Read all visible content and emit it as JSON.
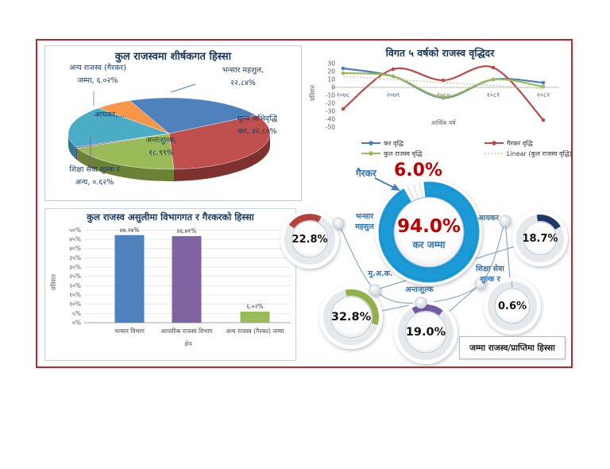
{
  "frame": {
    "border_color": "#C3242B"
  },
  "chart_data": [
    {
      "id": "revenue-share-pie",
      "type": "pie",
      "title": "कुल राजस्वमा शीर्षकगत हिस्सा",
      "slices": [
        {
          "label": "भन्सार महशुल",
          "value": 22.84,
          "color": "#4F81BD",
          "side_color": "#35577F",
          "label_lines": [
            "भन्सार महशुल,",
            "२२.८४%"
          ]
        },
        {
          "label": "मूल्य अभिवृद्धि कर",
          "value": 32.8,
          "color": "#C0504D",
          "side_color": "#7E3230",
          "label_lines": [
            "मूल्य अभिवृद्धि",
            "कर, ३२.८०%"
          ]
        },
        {
          "label": "अन्तःशुल्क",
          "value": 18.99,
          "color": "#9BBB59",
          "side_color": "#6A8136",
          "label_lines": [
            "अन्तःशुल्क,",
            "१८.९९%"
          ]
        },
        {
          "label": "शिक्षा सेवा शुल्क र अन्य",
          "value": 0.62,
          "color": "#8064A2",
          "side_color": "#59446F",
          "label_lines": [
            "शिक्षा सेवा शुल्क र",
            "अन्य, ०.६२%"
          ]
        },
        {
          "label": "आयकर",
          "value": 18.73,
          "color": "#4BACC6",
          "side_color": "#31788C",
          "label_lines": [
            "आयकर,..."
          ]
        },
        {
          "label": "अन्य राजस्व (गैरकर) जम्मा",
          "value": 6.02,
          "color": "#F79646",
          "side_color": "#B5641E",
          "label_lines": [
            "अन्य राजस्व (गैरकर)",
            "जम्मा, ६.०२%"
          ]
        }
      ]
    },
    {
      "id": "growth-line",
      "type": "line",
      "title": "विगत ५ वर्षको राजस्व वृद्धिदर",
      "xlabel": "आर्थिक वर्ष",
      "ylabel": "प्रतिशत",
      "categories": [
        "२०७८",
        "२०७९",
        "२०८०",
        "२०८१",
        "२०८२"
      ],
      "ylim": [
        -50,
        30
      ],
      "yticks": [
        30,
        20,
        10,
        0,
        -10,
        -20,
        -30,
        -40,
        -50
      ],
      "legend_position": "bottom",
      "series": [
        {
          "name": "कर वृद्धि",
          "color": "#4A7EBB",
          "style": "solid",
          "values": [
            24,
            14,
            -13,
            10,
            6
          ]
        },
        {
          "name": "गैरकर वृद्धि",
          "color": "#BE4B48",
          "style": "solid",
          "values": [
            -27,
            23,
            9,
            25,
            -41
          ]
        },
        {
          "name": "कुल राजस्व वृद्धि",
          "color": "#9ABA58",
          "style": "solid",
          "values": [
            18,
            14,
            -12,
            10,
            1
          ]
        },
        {
          "name": "Linear (कुल राजस्व वृद्धि)",
          "color": "#BFCF9A",
          "style": "dotted",
          "values": [
            13.8,
            10.0,
            6.2,
            2.4,
            -1.4
          ]
        }
      ]
    },
    {
      "id": "dept-share-bar",
      "type": "bar",
      "title": "कुल राजस्व असुलीमा विभागगत र गैरकरको हिस्सा",
      "xlabel": "क्षेत्र",
      "ylabel": "प्रतिशत",
      "categories": [
        "भन्सार विभाग",
        "आन्तरिक राजस्व विभाग",
        "अन्य राजस्व (गैरकर) जम्मा"
      ],
      "values": [
        47.27,
        46.71,
        6.02
      ],
      "value_labels": [
        "४७.२७%",
        "४६.७१%",
        "६.०२%"
      ],
      "colors": [
        "#4F81BD",
        "#8064A2",
        "#9BBB59"
      ],
      "ylim": [
        0,
        50
      ],
      "ytick_step": 5,
      "ytick_labels": [
        "०%",
        "५%",
        "१०%",
        "१५%",
        "२०%",
        "२५%",
        "३०%",
        "३५%",
        "४०%",
        "४५%",
        "५०%"
      ],
      "grid": true
    },
    {
      "id": "revenue-share-donuts",
      "type": "donut-infographic",
      "center": {
        "value": 94.0,
        "value_label": "94.0%",
        "caption": "कर जम्मा",
        "other_label": "गैरकर",
        "other_value": 6.0,
        "other_value_label": "6.0%",
        "ring_color": "#1C9AD6",
        "value_color": "#C00000"
      },
      "satellites": [
        {
          "label": "भन्सार महसुल",
          "label_lines": [
            "भन्सार",
            "महसुल"
          ],
          "value": 22.8,
          "display": "22.8%",
          "color": "#B5413C"
        },
        {
          "label": "आयकर",
          "label_lines": [
            "आयकर"
          ],
          "value": 18.7,
          "display": "18.7%",
          "color": "#1F3864"
        },
        {
          "label": "मु.अ.क.",
          "label_lines": [
            "मु.अ.क."
          ],
          "value": 32.8,
          "display": "32.8%",
          "color": "#92B04A"
        },
        {
          "label": "अन्तःशुल्क",
          "label_lines": [
            "अन्तःशुल्क"
          ],
          "value": 19.0,
          "display": "19.0%",
          "color": "#7659A5"
        },
        {
          "label": "शिक्षा सेवा शुल्क र",
          "label_lines": [
            "शिक्षा सेवा",
            "शुल्क र"
          ],
          "value": 0.6,
          "display": "0.6%",
          "color": "#9DA9B4"
        }
      ],
      "footer": "जम्मा राजस्व/प्राप्तिमा हिस्सा"
    }
  ]
}
